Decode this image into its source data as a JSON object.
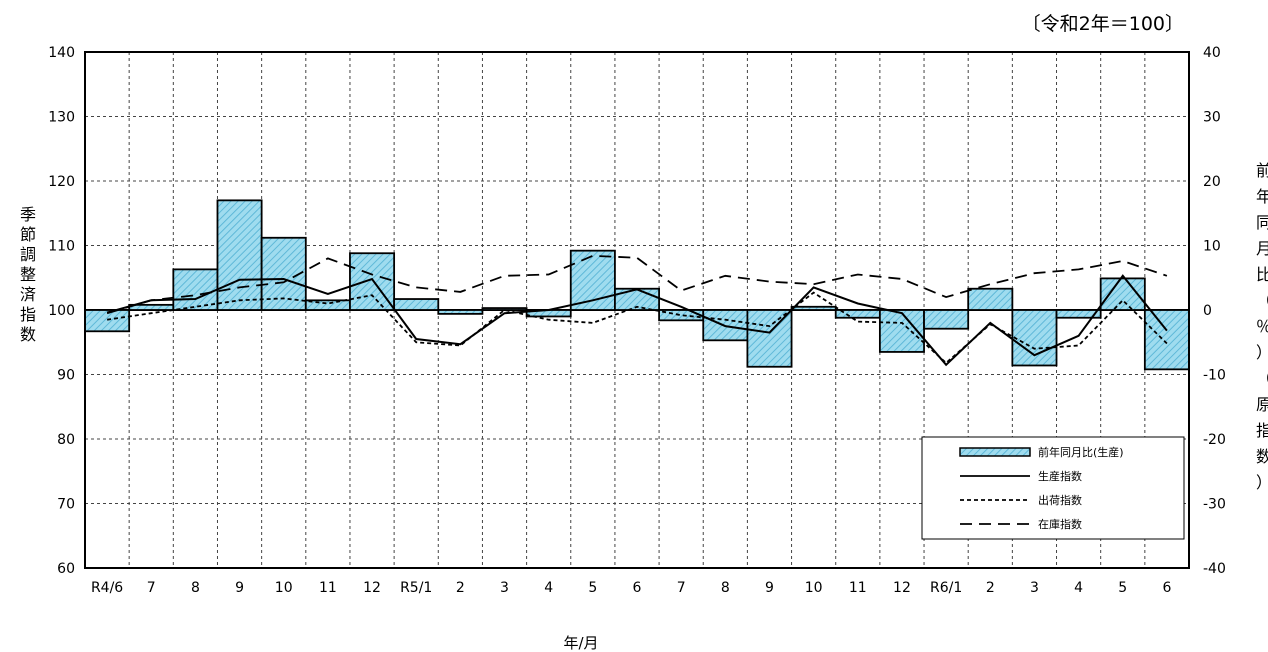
{
  "chart_data": {
    "type": "bar+line",
    "unit_note": "〔令和2年＝100〕",
    "xlabel": "年/月",
    "ylabel_left": "季節調整済指数",
    "ylabel_right": "前年同月比（％）（原指数）",
    "ylim_left": [
      60,
      140
    ],
    "ylim_right": [
      -40,
      40
    ],
    "yticks_left": [
      "140",
      "130",
      "120",
      "110",
      "100",
      "90",
      "80",
      "70",
      "60"
    ],
    "yticks_right": [
      "40",
      "30",
      "20",
      "10",
      "0",
      "-10",
      "-20",
      "-30",
      "-40"
    ],
    "categories": [
      "R4/6",
      "7",
      "8",
      "9",
      "10",
      "11",
      "12",
      "R5/1",
      "2",
      "3",
      "4",
      "5",
      "6",
      "7",
      "8",
      "9",
      "10",
      "11",
      "12",
      "R6/1",
      "2",
      "3",
      "4",
      "5",
      "6"
    ],
    "grid": true,
    "legend_position": "bottom-right",
    "bars": {
      "name": "前年同月比(生産)",
      "axis": "right",
      "color": "#8fd3ea",
      "values": [
        -3.3,
        0.8,
        6.3,
        17.0,
        11.2,
        1.5,
        8.8,
        1.7,
        -0.6,
        0.3,
        -1.0,
        9.2,
        3.3,
        -1.6,
        -4.7,
        -8.8,
        0.5,
        -1.2,
        -6.5,
        -2.9,
        3.3,
        -8.6,
        -1.2,
        4.9,
        -9.2
      ]
    },
    "series": [
      {
        "name": "生産指数",
        "axis": "left",
        "style": "solid",
        "values": [
          99.6,
          101.5,
          101.7,
          104.7,
          104.8,
          102.5,
          104.8,
          95.5,
          94.7,
          99.5,
          100.0,
          101.5,
          103.2,
          100.5,
          97.5,
          96.5,
          103.5,
          101.0,
          99.5,
          91.5,
          98.0,
          93.0,
          96.0,
          105.3,
          96.8
        ]
      },
      {
        "name": "出荷指数",
        "axis": "left",
        "style": "short-dash",
        "values": [
          98.5,
          99.5,
          100.5,
          101.5,
          101.8,
          101.0,
          102.3,
          95.0,
          94.5,
          100.0,
          98.5,
          98.0,
          100.5,
          99.2,
          98.5,
          97.5,
          102.7,
          98.2,
          98.0,
          91.8,
          97.8,
          94.0,
          94.5,
          101.5,
          94.8
        ]
      },
      {
        "name": "在庫指数",
        "axis": "left",
        "style": "long-dash",
        "values": [
          99.5,
          101.5,
          102.3,
          103.5,
          104.3,
          108.0,
          105.5,
          103.5,
          102.8,
          105.3,
          105.5,
          108.4,
          108.1,
          103.0,
          105.3,
          104.4,
          104.0,
          105.5,
          104.8,
          102.0,
          104.0,
          105.7,
          106.3,
          107.6,
          105.3
        ]
      }
    ]
  }
}
